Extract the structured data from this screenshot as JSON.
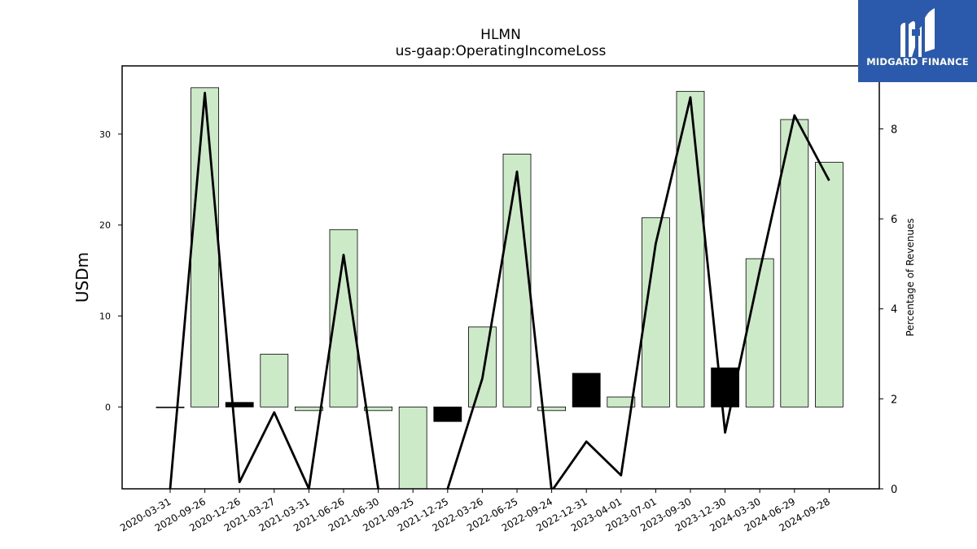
{
  "chart_data": {
    "type": "bar+line",
    "title": "HLMN",
    "subtitle": "us-gaap:OperatingIncomeLoss",
    "ylabel": "USDm",
    "y2label": "Percentage of Revenues",
    "ylim": [
      -9,
      37.5
    ],
    "y2lim": [
      0,
      9.4
    ],
    "yticks": [
      0,
      10,
      20,
      30
    ],
    "y2ticks": [
      0,
      2,
      4,
      6,
      8
    ],
    "categories": [
      "2020-03-31",
      "2020-09-26",
      "2020-12-26",
      "2021-03-27",
      "2021-03-31",
      "2021-06-26",
      "2021-06-30",
      "2021-09-25",
      "2021-12-25",
      "2022-03-26",
      "2022-06-25",
      "2022-09-24",
      "2022-12-31",
      "2023-04-01",
      "2023-07-01",
      "2023-09-30",
      "2023-12-30",
      "2024-03-30",
      "2024-06-29",
      "2024-09-28"
    ],
    "bars": {
      "values": [
        0,
        35.1,
        0.5,
        5.8,
        -0.4,
        19.5,
        -0.4,
        -9.0,
        -1.6,
        8.8,
        27.8,
        -0.4,
        3.7,
        1.1,
        20.8,
        34.7,
        4.3,
        16.3,
        31.6,
        26.9
      ],
      "highlight": [
        false,
        false,
        true,
        false,
        false,
        false,
        false,
        false,
        true,
        false,
        false,
        false,
        true,
        false,
        false,
        false,
        true,
        false,
        false,
        false
      ]
    },
    "line": {
      "values": [
        0.0,
        8.8,
        0.15,
        1.7,
        0.0,
        5.2,
        0.0,
        -0.5,
        0.0,
        2.45,
        7.05,
        -0.05,
        1.05,
        0.3,
        5.45,
        8.7,
        1.25,
        4.85,
        8.3,
        6.85
      ]
    },
    "colors": {
      "bar": "#cdeac8",
      "bar_edge": "#000000",
      "highlight": "#000000",
      "line": "#000000"
    }
  },
  "logo": {
    "text": "MIDGARD FINANCE",
    "background": "#2b5aad"
  }
}
